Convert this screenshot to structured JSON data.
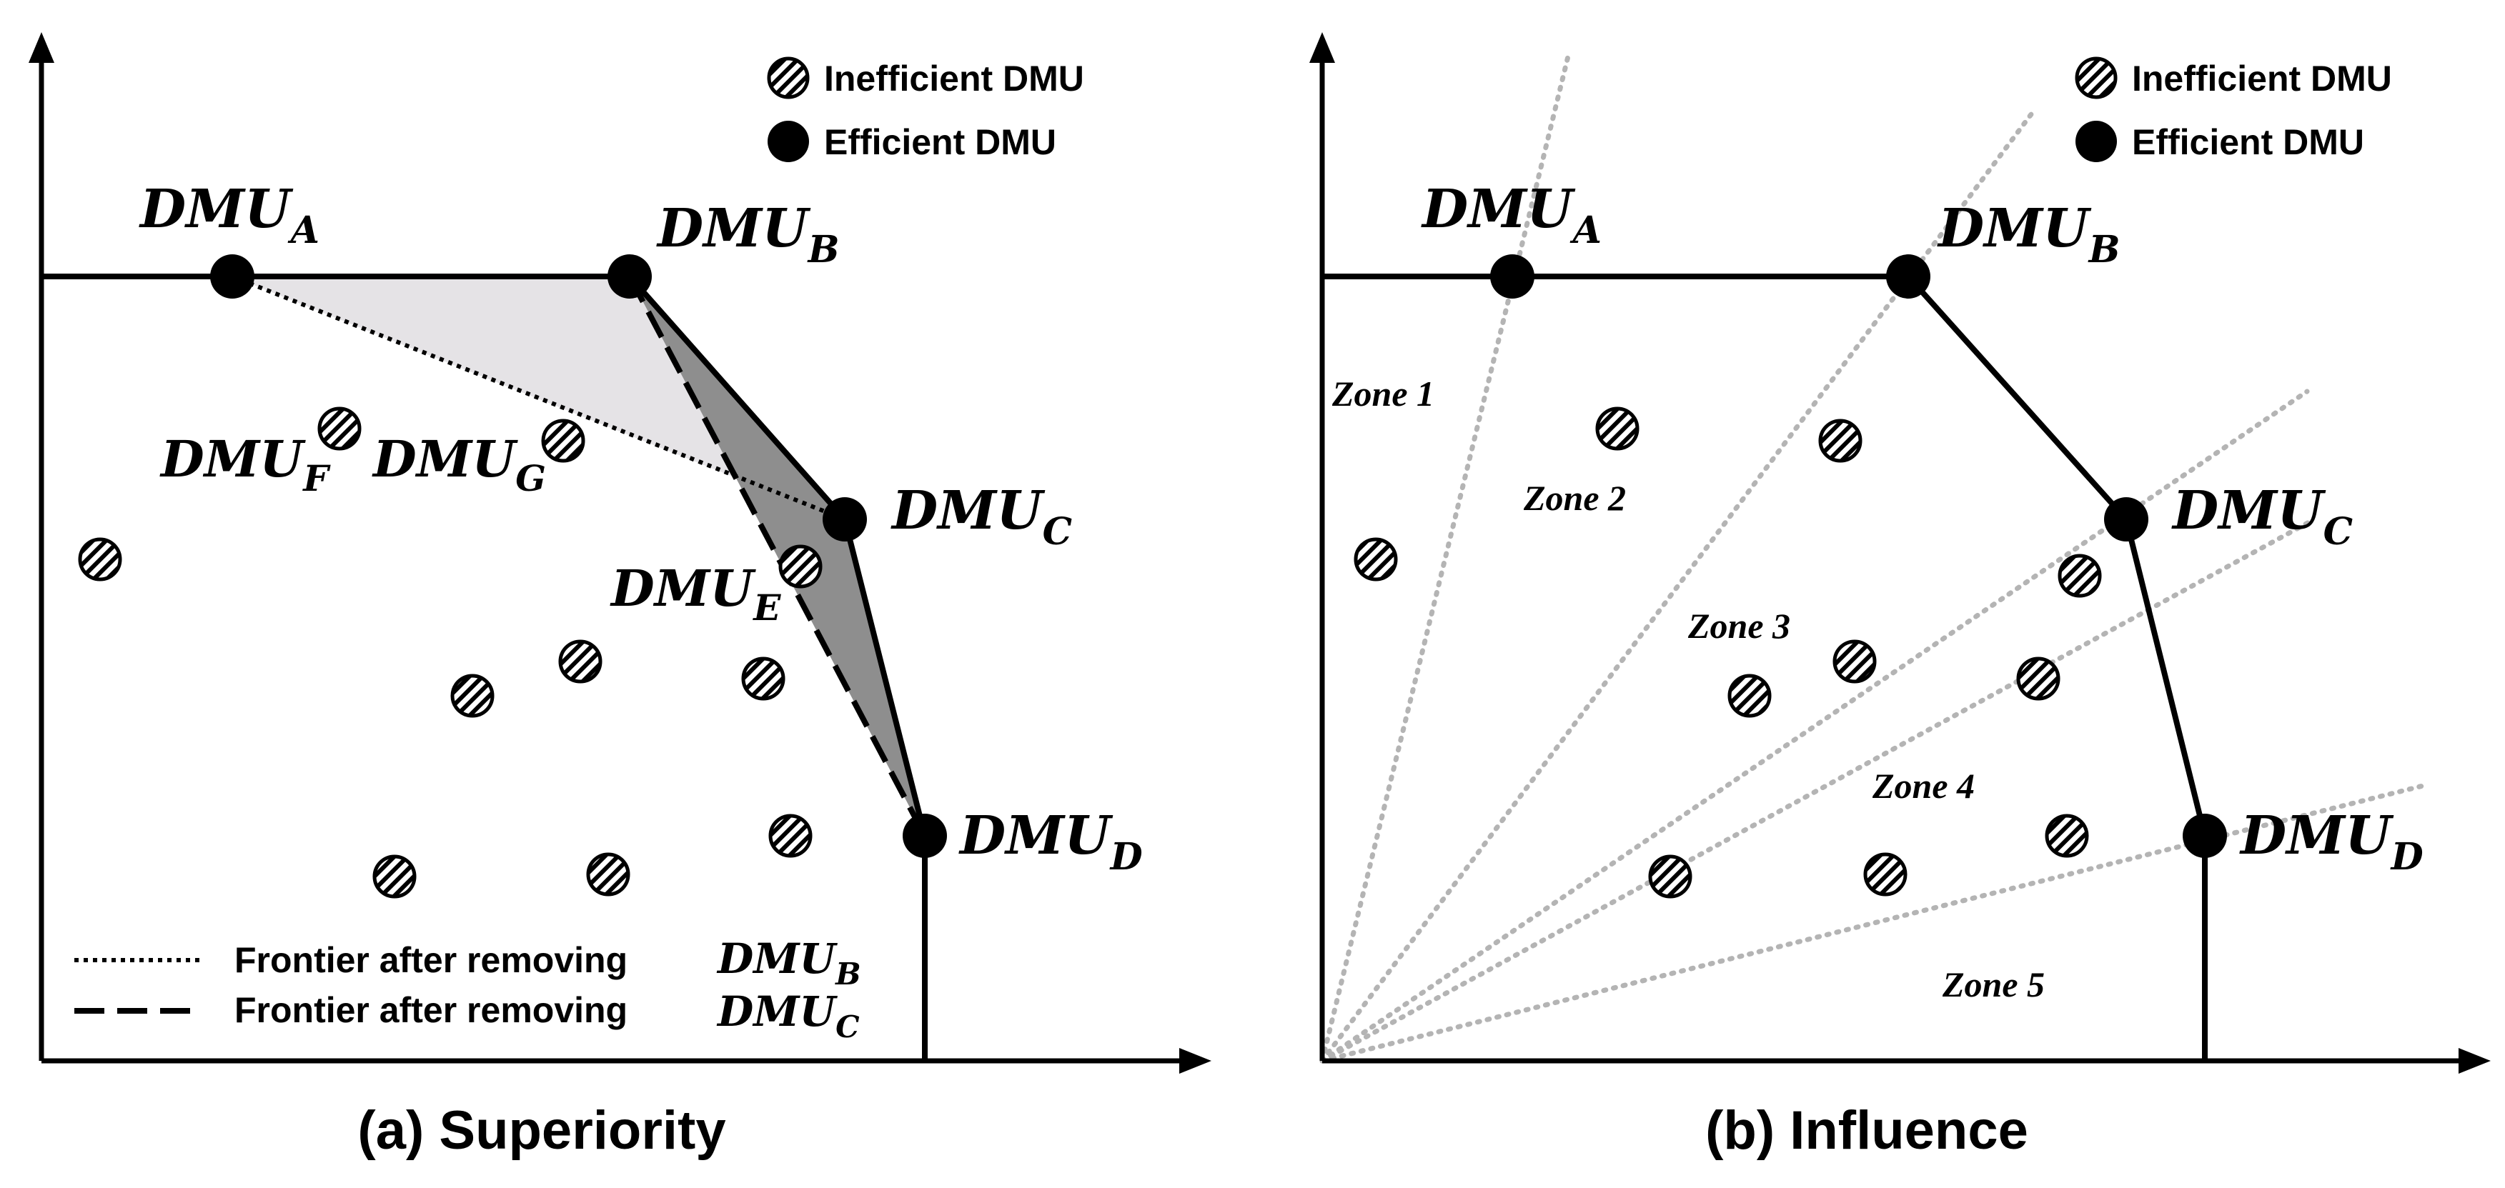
{
  "colors": {
    "ink": "#000000",
    "zone_line": "#b4b4b4",
    "hatch_background": "#ffffff",
    "region_light": "#e5e3e6",
    "region_dark": "#8e8e8e"
  },
  "icons": {
    "inefficient": "hatched-circle-icon",
    "efficient": "filled-circle-icon"
  },
  "panel_a": {
    "caption": "(a) Superiority",
    "legend": {
      "inefficient_label": "Inefficient DMU",
      "efficient_label": "Efficient DMU"
    },
    "efficient_dmus": [
      {
        "id": "A",
        "base": "DMU",
        "sub": "A"
      },
      {
        "id": "B",
        "base": "DMU",
        "sub": "B"
      },
      {
        "id": "C",
        "base": "DMU",
        "sub": "C"
      },
      {
        "id": "D",
        "base": "DMU",
        "sub": "D"
      }
    ],
    "labeled_inefficient_dmus": [
      {
        "id": "F",
        "base": "DMU",
        "sub": "F"
      },
      {
        "id": "G",
        "base": "DMU",
        "sub": "G"
      },
      {
        "id": "E",
        "base": "DMU",
        "sub": "E"
      }
    ],
    "frontier_legend": [
      {
        "style": "dotted",
        "text": "Frontier after removing",
        "base": "DMU",
        "sub": "B"
      },
      {
        "style": "dashed",
        "text": "Frontier after removing",
        "base": "DMU",
        "sub": "C"
      }
    ]
  },
  "panel_b": {
    "caption": "(b) Influence",
    "legend": {
      "inefficient_label": "Inefficient DMU",
      "efficient_label": "Efficient DMU"
    },
    "efficient_dmus": [
      {
        "id": "A",
        "base": "DMU",
        "sub": "A"
      },
      {
        "id": "B",
        "base": "DMU",
        "sub": "B"
      },
      {
        "id": "C",
        "base": "DMU",
        "sub": "C"
      },
      {
        "id": "D",
        "base": "DMU",
        "sub": "D"
      }
    ],
    "zones": [
      "Zone 1",
      "Zone 2",
      "Zone 3",
      "Zone 4",
      "Zone 5"
    ]
  }
}
